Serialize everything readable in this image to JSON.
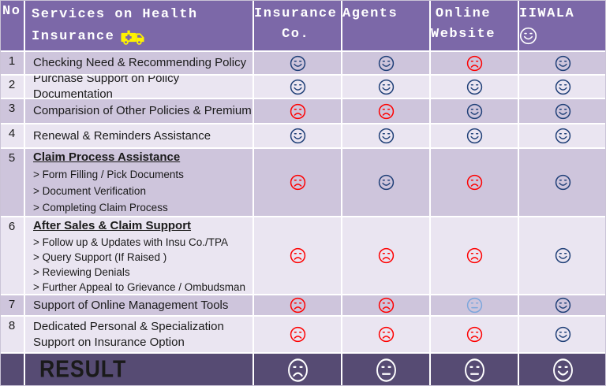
{
  "colors": {
    "navy": "#1F3F77",
    "red": "#FE0000",
    "lightblue": "#7CA6DC",
    "white": "#FFFFFF",
    "header_bg": "#7C68A8",
    "result_bg": "#564B73",
    "row_odd_bg": "#CEC5DC",
    "row_even_bg": "#EAE5F1",
    "ambulance_yellow": "#FFF200",
    "text": "#1A1A1A"
  },
  "header": {
    "no": "No",
    "services_line1": "Services on Health",
    "services_line2": "Insurance",
    "columns": [
      "Insurance\nCo.",
      "Agents",
      "Online\nWebsite",
      "IIWALA"
    ],
    "iiwala_face": "smile-white"
  },
  "rows": [
    {
      "no": "1",
      "title": "Checking Need & Recommending Policy",
      "cells": [
        "smile-navy",
        "smile-navy",
        "frown-red",
        "smile-navy"
      ]
    },
    {
      "no": "2",
      "title": "Purchase Support on Policy Documentation",
      "cells": [
        "smile-navy",
        "smile-navy",
        "smile-navy",
        "smile-navy"
      ]
    },
    {
      "no": "3",
      "title": "Comparision of Other Policies & Premium",
      "cells": [
        "frown-red",
        "frown-red",
        "smile-navy",
        "smile-navy"
      ]
    },
    {
      "no": "4",
      "title": "Renewal & Reminders Assistance",
      "cells": [
        "smile-navy",
        "smile-navy",
        "smile-navy",
        "smile-navy"
      ]
    },
    {
      "no": "5",
      "title": "Claim Process Assistance",
      "subitems": [
        "> Form Filling / Pick Documents",
        "> Document Verification",
        "> Completing Claim Process"
      ],
      "cells": [
        "frown-red",
        "smile-navy",
        "frown-red",
        "smile-navy"
      ]
    },
    {
      "no": "6",
      "title": "After Sales & Claim Support",
      "subitems": [
        "> Follow up & Updates with Insu Co./TPA",
        "> Query Support (If Raised )",
        "> Reviewing Denials",
        "> Further Appeal to Grievance / Ombudsman"
      ],
      "cells": [
        "frown-red",
        "frown-red",
        "frown-red",
        "smile-navy"
      ]
    },
    {
      "no": "7",
      "title": "Support of Online Management Tools",
      "cells": [
        "frown-red",
        "frown-red",
        "neutral-lightblue",
        "smile-navy"
      ]
    },
    {
      "no": "8",
      "title": "Dedicated Personal & Specialization Support on Insurance Option",
      "cells": [
        "frown-red",
        "frown-red",
        "frown-red",
        "smile-navy"
      ]
    }
  ],
  "result": {
    "label": "RESULT",
    "cells": [
      "frown-white",
      "neutral-white",
      "neutral-white",
      "smile-white"
    ]
  },
  "chart_data": {
    "type": "table",
    "title": "Services on Health Insurance",
    "columns": [
      "No",
      "Services on Health Insurance",
      "Insurance Co.",
      "Agents",
      "Online Website",
      "IIWALA"
    ],
    "rows": [
      [
        "1",
        "Checking Need & Recommending Policy",
        "smile",
        "smile",
        "frown",
        "smile"
      ],
      [
        "2",
        "Purchase Support on Policy Documentation",
        "smile",
        "smile",
        "smile",
        "smile"
      ],
      [
        "3",
        "Comparision of Other Policies & Premium",
        "frown",
        "frown",
        "smile",
        "smile"
      ],
      [
        "4",
        "Renewal & Reminders Assistance",
        "smile",
        "smile",
        "smile",
        "smile"
      ],
      [
        "5",
        "Claim Process Assistance (> Form Filling / Pick Documents; > Document Verification; > Completing Claim Process)",
        "frown",
        "smile",
        "frown",
        "smile"
      ],
      [
        "6",
        "After Sales & Claim Support (> Follow up & Updates with Insu Co./TPA; > Query Support (If Raised ); > Reviewing Denials; > Further Appeal to Grievance / Ombudsman)",
        "frown",
        "frown",
        "frown",
        "smile"
      ],
      [
        "7",
        "Support of Online Management Tools",
        "frown",
        "frown",
        "neutral",
        "smile"
      ],
      [
        "8",
        "Dedicated Personal & Specialization Support on Insurance Option",
        "frown",
        "frown",
        "frown",
        "smile"
      ],
      [
        "",
        "RESULT",
        "frown",
        "neutral",
        "neutral",
        "smile"
      ]
    ]
  }
}
